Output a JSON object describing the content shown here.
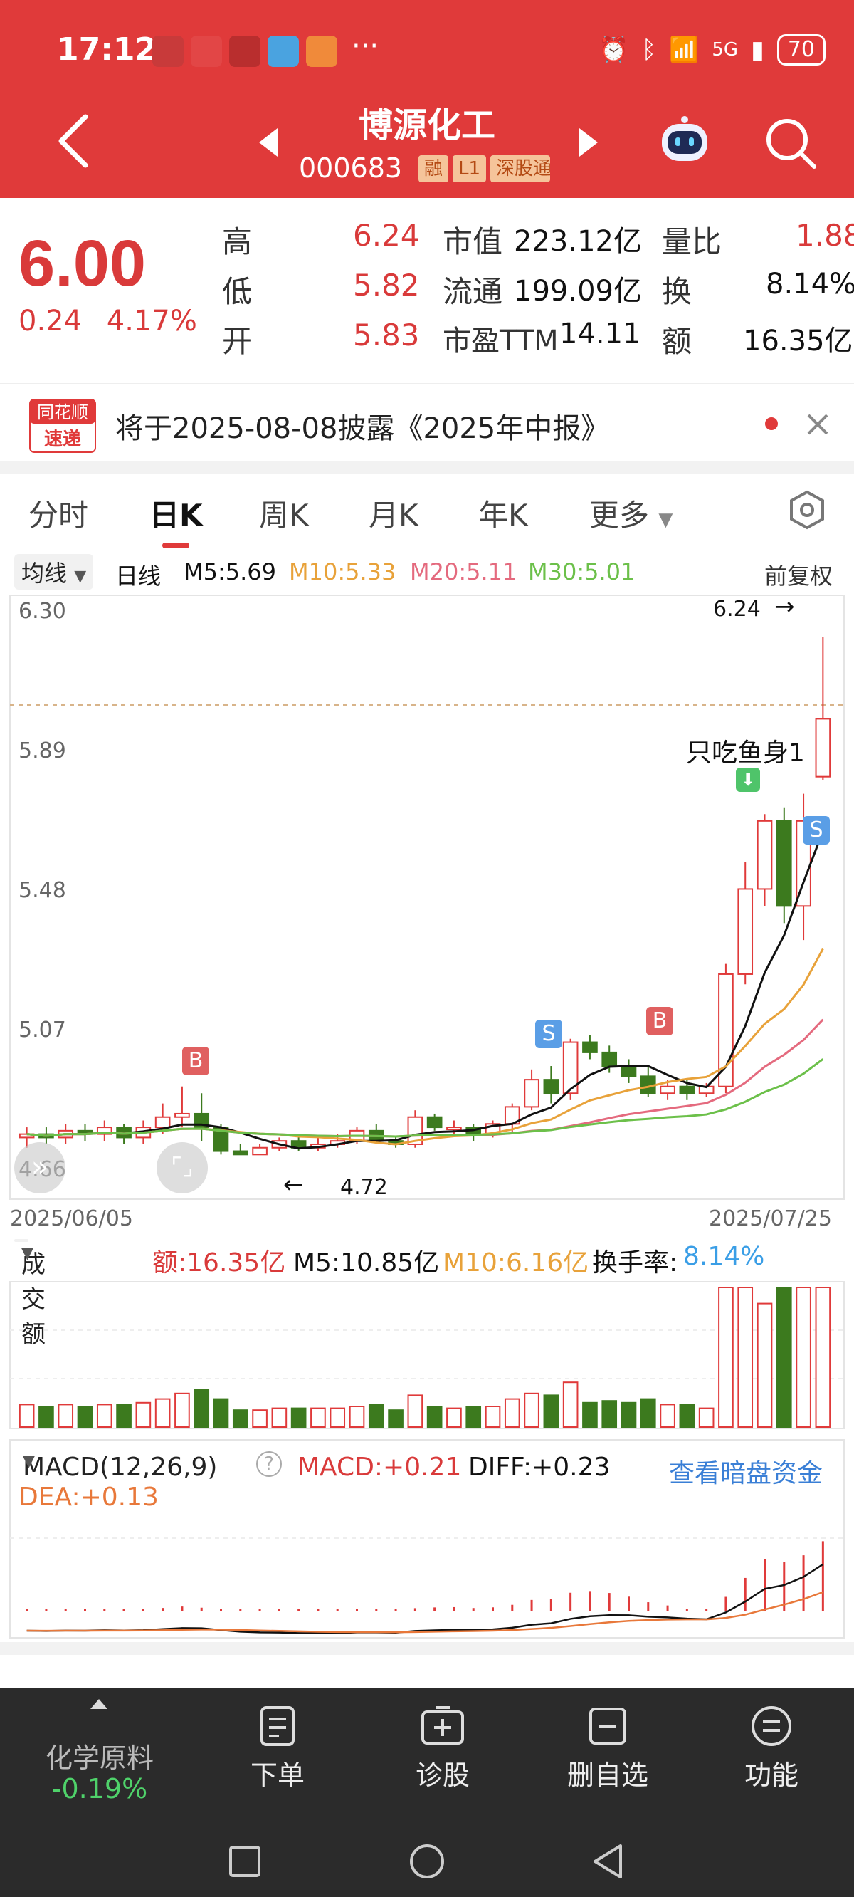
{
  "status_bar": {
    "time": "17:12",
    "more": "···",
    "network": "5G",
    "battery": "70"
  },
  "header": {
    "title": "博源化工",
    "code": "000683",
    "tags": [
      "融",
      "L1",
      "深股通"
    ]
  },
  "quote": {
    "price": "6.00",
    "change": "0.24",
    "change_pct": "4.17%",
    "fields": [
      {
        "label": "高",
        "value": "6.24"
      },
      {
        "label": "低",
        "value": "5.82"
      },
      {
        "label": "开",
        "value": "5.83"
      },
      {
        "label": "市值",
        "value": "223.12亿"
      },
      {
        "label": "流通",
        "value": "199.09亿"
      },
      {
        "label": "市盈TTM",
        "value": "14.11"
      },
      {
        "label": "量比",
        "value": "1.88"
      },
      {
        "label": "换",
        "value": "8.14%"
      },
      {
        "label": "额",
        "value": "16.35亿"
      }
    ]
  },
  "notice": {
    "logo_top": "同花顺",
    "logo_bottom": "速递",
    "text": "将于2025-08-08披露《2025年中报》"
  },
  "tabs": [
    "分时",
    "日K",
    "周K",
    "月K",
    "年K",
    "更多"
  ],
  "active_tab": "日K",
  "kline": {
    "ma_selector": "均线",
    "period": "日线",
    "ma": [
      {
        "label": "M5:5.69",
        "color": "#111111"
      },
      {
        "label": "M10:5.33",
        "color": "#e8a23a"
      },
      {
        "label": "M20:5.11",
        "color": "#e46a7e"
      },
      {
        "label": "M30:5.01",
        "color": "#6cc04a"
      }
    ],
    "adjust": "前复权",
    "y_ticks": [
      "6.30",
      "5.89",
      "5.48",
      "5.07",
      "4.66"
    ],
    "high_marker": "6.24",
    "low_marker": "4.72",
    "annotation": "只吃鱼身1",
    "signal_b": "B",
    "signal_s": "S",
    "date_start": "2025/06/05",
    "date_end": "2025/07/25"
  },
  "chart_data": {
    "type": "candlestick",
    "ylim": [
      4.66,
      6.3
    ],
    "x": [
      "2025/06/05",
      "2025/07/25"
    ],
    "candles_open_close_low_high": [
      [
        4.77,
        4.78,
        4.74,
        4.8
      ],
      [
        4.78,
        4.77,
        4.75,
        4.8
      ],
      [
        4.77,
        4.79,
        4.75,
        4.81
      ],
      [
        4.79,
        4.78,
        4.76,
        4.81
      ],
      [
        4.78,
        4.8,
        4.76,
        4.82
      ],
      [
        4.8,
        4.77,
        4.75,
        4.81
      ],
      [
        4.77,
        4.8,
        4.75,
        4.82
      ],
      [
        4.8,
        4.83,
        4.78,
        4.87
      ],
      [
        4.83,
        4.84,
        4.8,
        4.92
      ],
      [
        4.84,
        4.8,
        4.76,
        4.9
      ],
      [
        4.8,
        4.73,
        4.72,
        4.81
      ],
      [
        4.73,
        4.72,
        4.72,
        4.75
      ],
      [
        4.72,
        4.74,
        4.72,
        4.75
      ],
      [
        4.74,
        4.76,
        4.73,
        4.77
      ],
      [
        4.76,
        4.74,
        4.73,
        4.77
      ],
      [
        4.74,
        4.75,
        4.73,
        4.77
      ],
      [
        4.75,
        4.76,
        4.74,
        4.78
      ],
      [
        4.76,
        4.79,
        4.75,
        4.8
      ],
      [
        4.79,
        4.76,
        4.75,
        4.81
      ],
      [
        4.76,
        4.75,
        4.74,
        4.77
      ],
      [
        4.75,
        4.83,
        4.74,
        4.85
      ],
      [
        4.83,
        4.8,
        4.79,
        4.84
      ],
      [
        4.8,
        4.8,
        4.78,
        4.82
      ],
      [
        4.8,
        4.78,
        4.76,
        4.81
      ],
      [
        4.78,
        4.81,
        4.77,
        4.82
      ],
      [
        4.81,
        4.86,
        4.78,
        4.87
      ],
      [
        4.86,
        4.94,
        4.85,
        4.97
      ],
      [
        4.94,
        4.9,
        4.87,
        4.98
      ],
      [
        4.9,
        5.05,
        4.88,
        5.06
      ],
      [
        5.05,
        5.02,
        5.0,
        5.07
      ],
      [
        5.02,
        4.98,
        4.96,
        5.04
      ],
      [
        4.98,
        4.95,
        4.93,
        5.0
      ],
      [
        4.95,
        4.9,
        4.89,
        4.98
      ],
      [
        4.9,
        4.92,
        4.88,
        4.94
      ],
      [
        4.92,
        4.9,
        4.88,
        4.94
      ],
      [
        4.9,
        4.92,
        4.89,
        4.93
      ],
      [
        4.92,
        5.25,
        4.9,
        5.28
      ],
      [
        5.25,
        5.5,
        5.22,
        5.58
      ],
      [
        5.5,
        5.7,
        5.45,
        5.72
      ],
      [
        5.7,
        5.45,
        5.4,
        5.74
      ],
      [
        5.45,
        5.7,
        5.35,
        5.78
      ],
      [
        5.83,
        6.0,
        5.82,
        6.24
      ]
    ],
    "volume_series": [
      {
        "name": "额",
        "last": "16.35亿"
      },
      {
        "name": "M5",
        "last": "10.85亿"
      },
      {
        "name": "M10",
        "last": "6.16亿"
      }
    ]
  },
  "volume": {
    "selector": "成交额",
    "amount": "额:16.35亿",
    "m5": "M5:10.85亿",
    "m10": "M10:6.16亿",
    "turnover_label": "换手率:",
    "turnover_value": "8.14%"
  },
  "macd": {
    "selector": "MACD(12,26,9)",
    "macd": "MACD:+0.21",
    "diff": "DIFF:+0.23",
    "dea": "DEA:+0.13",
    "link": "查看暗盘资金"
  },
  "bottom": {
    "sector": "化学原料",
    "sector_change": "-0.19%",
    "buttons": [
      "下单",
      "诊股",
      "删自选",
      "功能"
    ]
  }
}
